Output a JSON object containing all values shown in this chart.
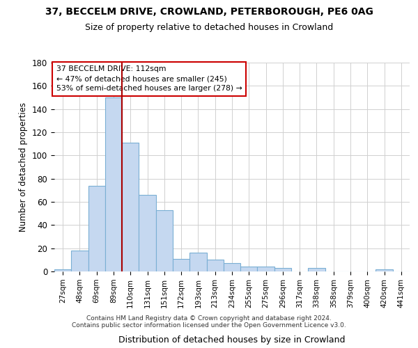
{
  "title1": "37, BECCELM DRIVE, CROWLAND, PETERBOROUGH, PE6 0AG",
  "title2": "Size of property relative to detached houses in Crowland",
  "xlabel": "Distribution of detached houses by size in Crowland",
  "ylabel": "Number of detached properties",
  "categories": [
    "27sqm",
    "48sqm",
    "69sqm",
    "89sqm",
    "110sqm",
    "131sqm",
    "151sqm",
    "172sqm",
    "193sqm",
    "213sqm",
    "234sqm",
    "255sqm",
    "275sqm",
    "296sqm",
    "317sqm",
    "338sqm",
    "358sqm",
    "379sqm",
    "400sqm",
    "420sqm",
    "441sqm"
  ],
  "values": [
    2,
    18,
    74,
    150,
    111,
    66,
    53,
    11,
    16,
    10,
    7,
    4,
    4,
    3,
    0,
    3,
    0,
    0,
    0,
    2,
    0
  ],
  "bar_color": "#c5d8f0",
  "bar_edge_color": "#7aafd4",
  "ref_line_index": 3.5,
  "ref_line_color": "#aa0000",
  "ylim": [
    0,
    180
  ],
  "yticks": [
    0,
    20,
    40,
    60,
    80,
    100,
    120,
    140,
    160,
    180
  ],
  "annotation_title": "37 BECCELM DRIVE: 112sqm",
  "annotation_line1": "← 47% of detached houses are smaller (245)",
  "annotation_line2": "53% of semi-detached houses are larger (278) →",
  "annotation_box_color": "#ffffff",
  "annotation_box_edge": "#cc0000",
  "footer1": "Contains HM Land Registry data © Crown copyright and database right 2024.",
  "footer2": "Contains public sector information licensed under the Open Government Licence v3.0.",
  "bg_color": "#ffffff",
  "grid_color": "#d0d0d0",
  "title1_fontsize": 10,
  "title2_fontsize": 9
}
